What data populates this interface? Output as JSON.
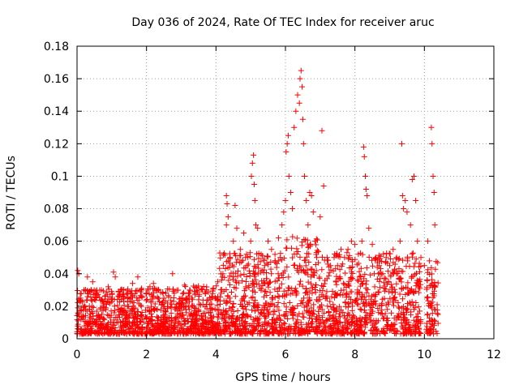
{
  "chart_data": {
    "type": "scatter",
    "title": "Day 036 of 2024, Rate Of TEC Index for receiver aruc",
    "xlabel": "GPS time / hours",
    "ylabel": "ROTI / TECUs",
    "xlim": [
      0,
      12
    ],
    "ylim": [
      0,
      0.18
    ],
    "x_ticks": [
      "0",
      "2",
      "4",
      "6",
      "8",
      "10",
      "12"
    ],
    "y_ticks": [
      "0",
      "0.02",
      "0.04",
      "0.06",
      "0.08",
      "0.1",
      "0.12",
      "0.14",
      "0.16",
      "0.18"
    ],
    "grid": true,
    "marker": "+",
    "marker_color": "#ff0000",
    "series": [
      {
        "name": "ROTI",
        "points": [
          [
            0.02,
            0.042
          ],
          [
            0.05,
            0.04
          ],
          [
            0.1,
            0.025
          ],
          [
            0.2,
            0.03
          ],
          [
            0.3,
            0.038
          ],
          [
            0.45,
            0.035
          ],
          [
            0.55,
            0.028
          ],
          [
            0.7,
            0.03
          ],
          [
            0.9,
            0.032
          ],
          [
            1.05,
            0.041
          ],
          [
            1.1,
            0.038
          ],
          [
            1.3,
            0.03
          ],
          [
            1.45,
            0.028
          ],
          [
            1.6,
            0.034
          ],
          [
            1.75,
            0.038
          ],
          [
            1.85,
            0.03
          ],
          [
            2.0,
            0.028
          ],
          [
            2.1,
            0.032
          ],
          [
            2.2,
            0.034
          ],
          [
            2.35,
            0.03
          ],
          [
            2.5,
            0.025
          ],
          [
            2.6,
            0.022
          ],
          [
            2.75,
            0.04
          ],
          [
            3.0,
            0.022
          ],
          [
            3.2,
            0.025
          ],
          [
            3.4,
            0.028
          ],
          [
            3.5,
            0.024
          ],
          [
            3.7,
            0.028
          ],
          [
            3.9,
            0.026
          ],
          [
            4.05,
            0.035
          ],
          [
            4.15,
            0.028
          ],
          [
            4.2,
            0.04
          ],
          [
            4.3,
            0.088
          ],
          [
            4.32,
            0.083
          ],
          [
            4.35,
            0.075
          ],
          [
            4.3,
            0.07
          ],
          [
            4.4,
            0.05
          ],
          [
            4.5,
            0.06
          ],
          [
            4.55,
            0.082
          ],
          [
            4.6,
            0.068
          ],
          [
            4.7,
            0.055
          ],
          [
            4.8,
            0.065
          ],
          [
            4.85,
            0.05
          ],
          [
            4.9,
            0.045
          ],
          [
            5.0,
            0.06
          ],
          [
            5.02,
            0.1
          ],
          [
            5.05,
            0.108
          ],
          [
            5.08,
            0.113
          ],
          [
            5.1,
            0.095
          ],
          [
            5.12,
            0.085
          ],
          [
            5.15,
            0.07
          ],
          [
            5.2,
            0.068
          ],
          [
            5.3,
            0.052
          ],
          [
            5.4,
            0.045
          ],
          [
            5.5,
            0.06
          ],
          [
            5.6,
            0.055
          ],
          [
            5.7,
            0.048
          ],
          [
            5.8,
            0.062
          ],
          [
            5.85,
            0.05
          ],
          [
            5.9,
            0.07
          ],
          [
            5.95,
            0.078
          ],
          [
            6.0,
            0.085
          ],
          [
            6.02,
            0.115
          ],
          [
            6.05,
            0.12
          ],
          [
            6.08,
            0.125
          ],
          [
            6.1,
            0.1
          ],
          [
            6.15,
            0.09
          ],
          [
            6.2,
            0.08
          ],
          [
            6.25,
            0.13
          ],
          [
            6.3,
            0.14
          ],
          [
            6.35,
            0.15
          ],
          [
            6.4,
            0.145
          ],
          [
            6.42,
            0.16
          ],
          [
            6.45,
            0.165
          ],
          [
            6.48,
            0.155
          ],
          [
            6.5,
            0.135
          ],
          [
            6.52,
            0.12
          ],
          [
            6.55,
            0.1
          ],
          [
            6.6,
            0.085
          ],
          [
            6.65,
            0.07
          ],
          [
            6.7,
            0.09
          ],
          [
            6.75,
            0.088
          ],
          [
            6.8,
            0.078
          ],
          [
            6.85,
            0.06
          ],
          [
            6.9,
            0.05
          ],
          [
            7.0,
            0.075
          ],
          [
            7.05,
            0.128
          ],
          [
            7.1,
            0.094
          ],
          [
            7.2,
            0.05
          ],
          [
            7.3,
            0.045
          ],
          [
            7.4,
            0.05
          ],
          [
            7.5,
            0.045
          ],
          [
            7.6,
            0.055
          ],
          [
            7.7,
            0.05
          ],
          [
            7.8,
            0.055
          ],
          [
            7.9,
            0.06
          ],
          [
            8.0,
            0.058
          ],
          [
            8.1,
            0.052
          ],
          [
            8.2,
            0.06
          ],
          [
            8.25,
            0.118
          ],
          [
            8.27,
            0.112
          ],
          [
            8.3,
            0.1
          ],
          [
            8.32,
            0.092
          ],
          [
            8.35,
            0.088
          ],
          [
            8.4,
            0.068
          ],
          [
            8.5,
            0.058
          ],
          [
            8.6,
            0.05
          ],
          [
            8.7,
            0.045
          ],
          [
            8.8,
            0.04
          ],
          [
            8.9,
            0.05
          ],
          [
            9.0,
            0.045
          ],
          [
            9.1,
            0.055
          ],
          [
            9.2,
            0.05
          ],
          [
            9.3,
            0.06
          ],
          [
            9.35,
            0.12
          ],
          [
            9.37,
            0.088
          ],
          [
            9.4,
            0.08
          ],
          [
            9.45,
            0.085
          ],
          [
            9.5,
            0.078
          ],
          [
            9.6,
            0.07
          ],
          [
            9.65,
            0.098
          ],
          [
            9.7,
            0.1
          ],
          [
            9.75,
            0.085
          ],
          [
            9.8,
            0.06
          ],
          [
            9.9,
            0.05
          ],
          [
            10.0,
            0.045
          ],
          [
            10.1,
            0.06
          ],
          [
            10.2,
            0.13
          ],
          [
            10.22,
            0.12
          ],
          [
            10.25,
            0.1
          ],
          [
            10.28,
            0.09
          ],
          [
            10.3,
            0.07
          ]
        ]
      }
    ]
  }
}
